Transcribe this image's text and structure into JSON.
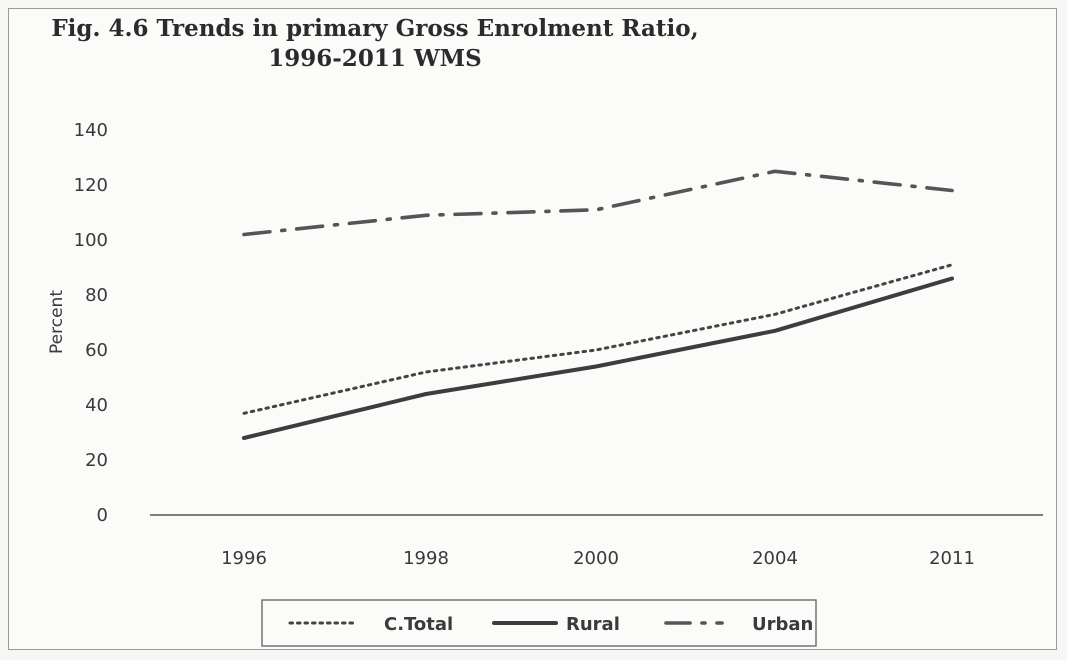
{
  "chart_data": {
    "type": "line",
    "title": "Fig. 4.6 Trends in primary Gross Enrolment Ratio,",
    "subtitle": "1996-2011 WMS",
    "xlabel": "",
    "ylabel": "Percent",
    "categories": [
      "1996",
      "1998",
      "2000",
      "2004",
      "2011"
    ],
    "ylim": [
      0,
      140
    ],
    "yticks": [
      0,
      20,
      40,
      60,
      80,
      100,
      120,
      140
    ],
    "grid": false,
    "legend_position": "bottom",
    "series": [
      {
        "name": "C.Total",
        "values": [
          37,
          52,
          60,
          73,
          91
        ],
        "style": "dotted",
        "color": "#444444"
      },
      {
        "name": "Rural",
        "values": [
          28,
          44,
          54,
          67,
          86
        ],
        "style": "solid",
        "color": "#3d3d3d"
      },
      {
        "name": "Urban",
        "values": [
          102,
          109,
          111,
          125,
          118
        ],
        "style": "dashdot",
        "color": "#555555"
      }
    ]
  }
}
